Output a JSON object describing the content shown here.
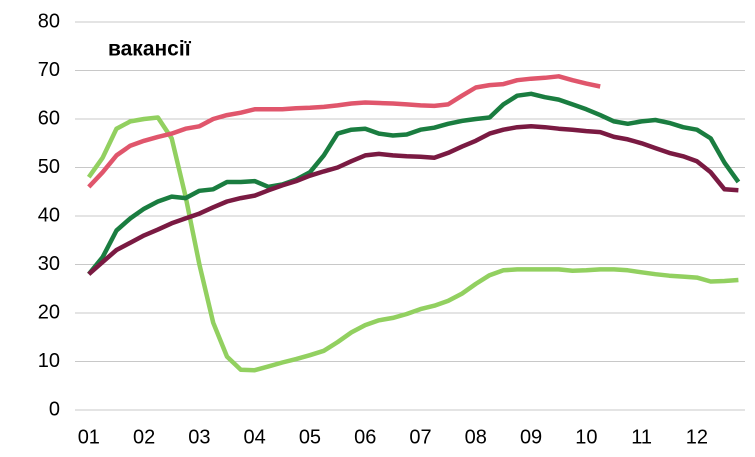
{
  "chart_data": {
    "type": "line",
    "annotation": "вакансії",
    "x": [
      1,
      1.25,
      1.5,
      1.75,
      2,
      2.25,
      2.5,
      2.75,
      3,
      3.25,
      3.5,
      3.75,
      4,
      4.25,
      4.5,
      4.75,
      5,
      5.25,
      5.5,
      5.75,
      6,
      6.25,
      6.5,
      6.75,
      7,
      7.25,
      7.5,
      7.75,
      8,
      8.25,
      8.5,
      8.75,
      9,
      9.25,
      9.5,
      9.75,
      10,
      10.25,
      10.5,
      10.75,
      11,
      11.25,
      11.5,
      11.75,
      12,
      12.25,
      12.5,
      12.75
    ],
    "series": [
      {
        "color": "#92d060",
        "values": [
          48,
          52,
          58,
          59.5,
          60,
          60.3,
          56,
          44,
          30,
          18,
          11,
          8.3,
          8.2,
          9,
          9.8,
          10.5,
          11.3,
          12.2,
          14,
          16,
          17.5,
          18.5,
          19,
          19.8,
          20.8,
          21.5,
          22.5,
          24,
          26,
          27.8,
          28.8,
          29,
          29,
          29,
          29,
          28.7,
          28.8,
          29,
          29,
          28.8,
          28.4,
          28,
          27.7,
          27.5,
          27.3,
          26.5,
          26.6,
          26.8
        ]
      },
      {
        "color": "#e0566c",
        "values": [
          46,
          49,
          52.5,
          54.5,
          55.5,
          56.3,
          57,
          58,
          58.5,
          60,
          60.8,
          61.3,
          62,
          62,
          62,
          62.2,
          62.3,
          62.5,
          62.8,
          63.2,
          63.4,
          63.3,
          63.2,
          63,
          62.8,
          62.7,
          63,
          64.8,
          66.5,
          67,
          67.2,
          68,
          68.3,
          68.5,
          68.8,
          68,
          67.3,
          66.7,
          null,
          null,
          null,
          null,
          null,
          null,
          null,
          null,
          null,
          null
        ]
      },
      {
        "color": "#1a7d40",
        "values": [
          28,
          31.5,
          37,
          39.5,
          41.5,
          43,
          44,
          43.7,
          45.2,
          45.5,
          47,
          47,
          47.2,
          46,
          46.5,
          47.5,
          49,
          52.5,
          57,
          57.8,
          58,
          57,
          56.6,
          56.8,
          57.8,
          58.2,
          59,
          59.6,
          60,
          60.3,
          63,
          64.8,
          65.2,
          64.5,
          64,
          63,
          62,
          60.8,
          59.5,
          59,
          59.5,
          59.8,
          59.2,
          58.3,
          57.8,
          56,
          51,
          47
        ]
      },
      {
        "color": "#7a1a42",
        "values": [
          28,
          30.5,
          33,
          34.5,
          36,
          37.2,
          38.5,
          39.5,
          40.5,
          41.8,
          43,
          43.7,
          44.2,
          45.3,
          46.3,
          47.2,
          48.3,
          49.2,
          50,
          51.3,
          52.5,
          52.8,
          52.5,
          52.3,
          52.2,
          52,
          53,
          54.3,
          55.5,
          57,
          57.8,
          58.3,
          58.5,
          58.3,
          58,
          57.8,
          57.5,
          57.3,
          56.3,
          55.8,
          55,
          54,
          53,
          52.3,
          51.3,
          49,
          45.5,
          45.3
        ]
      }
    ],
    "xlim": [
      0.75,
      12.87
    ],
    "xticks": [
      {
        "value": 1,
        "label": "01"
      },
      {
        "value": 2,
        "label": "02"
      },
      {
        "value": 3,
        "label": "03"
      },
      {
        "value": 4,
        "label": "04"
      },
      {
        "value": 5,
        "label": "05"
      },
      {
        "value": 6,
        "label": "06"
      },
      {
        "value": 7,
        "label": "07"
      },
      {
        "value": 8,
        "label": "08"
      },
      {
        "value": 9,
        "label": "09"
      },
      {
        "value": 10,
        "label": "10"
      },
      {
        "value": 11,
        "label": "11"
      },
      {
        "value": 12,
        "label": "12"
      }
    ],
    "ylim": [
      0,
      80
    ],
    "yticks": [
      0,
      10,
      20,
      30,
      40,
      50,
      60,
      70,
      80
    ],
    "grid": true
  }
}
